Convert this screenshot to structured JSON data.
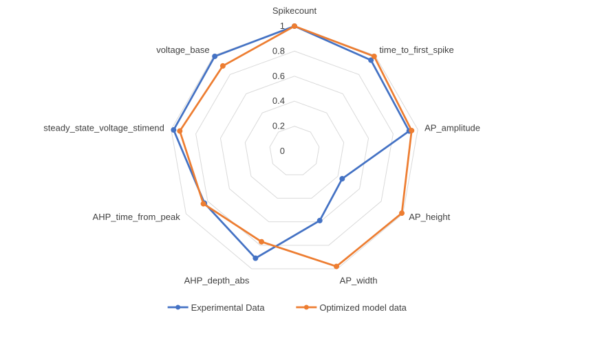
{
  "chart_data": {
    "type": "radar",
    "title": "",
    "categories": [
      "Spikecount",
      "time_to_first_spike",
      "AP_amplitude",
      "AP_height",
      "AP_width",
      "AHP_depth_abs",
      "AHP_time_from_peak",
      "steady_state_voltage_stimend",
      "voltage_base"
    ],
    "radial_ticks": [
      "0",
      "0.2",
      "0.4",
      "0.6",
      "0.8",
      "1"
    ],
    "rlim": [
      0,
      1
    ],
    "grid": true,
    "legend_position": "bottom",
    "series": [
      {
        "name": "Experimental Data",
        "color": "#4472C4",
        "values": [
          1.0,
          0.95,
          0.93,
          0.44,
          0.59,
          0.91,
          0.83,
          0.98,
          0.99
        ]
      },
      {
        "name": "Optimized model data",
        "color": "#ED7D31",
        "values": [
          1.0,
          0.99,
          0.95,
          0.99,
          0.98,
          0.77,
          0.84,
          0.93,
          0.89
        ]
      }
    ]
  }
}
